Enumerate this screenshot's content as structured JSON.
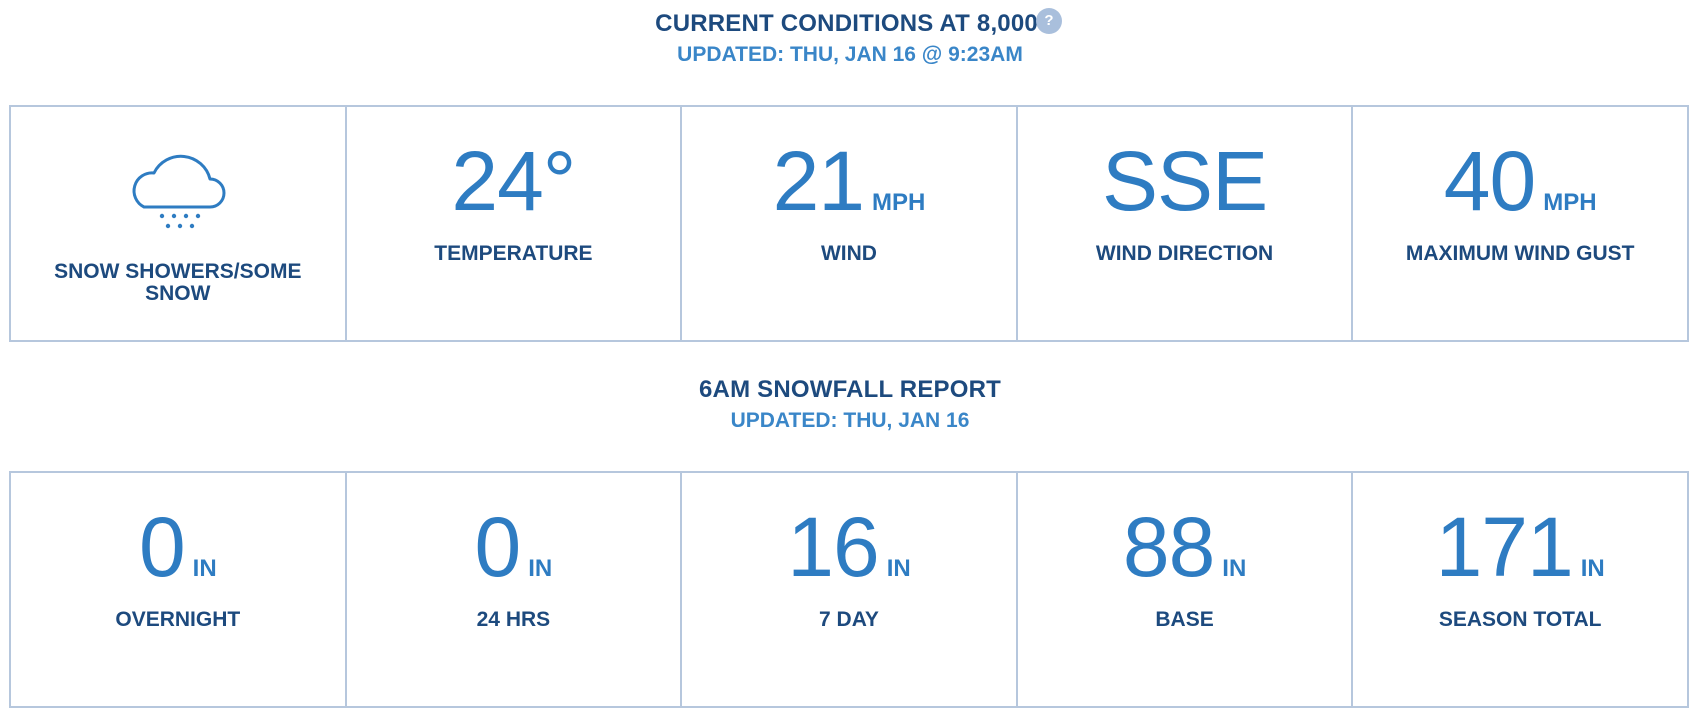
{
  "conditions": {
    "title": "CURRENT CONDITIONS AT 8,000’",
    "help_glyph": "?",
    "updated": "UPDATED: THU, JAN 16 @ 9:23AM",
    "weather": {
      "icon": "snow-cloud-icon",
      "label": "SNOW SHOWERS/SOME SNOW"
    },
    "temperature": {
      "value": "24°",
      "label": "TEMPERATURE"
    },
    "wind": {
      "value": "21",
      "unit": "MPH",
      "label": "WIND"
    },
    "wind_direction": {
      "value": "SSE",
      "label": "WIND DIRECTION"
    },
    "max_gust": {
      "value": "40",
      "unit": "MPH",
      "label": "MAXIMUM WIND GUST"
    }
  },
  "snowfall": {
    "title": "6AM SNOWFALL REPORT",
    "updated": "UPDATED: THU, JAN 16",
    "items": [
      {
        "value": "0",
        "unit": "IN",
        "label": "OVERNIGHT"
      },
      {
        "value": "0",
        "unit": "IN",
        "label": "24 HRS"
      },
      {
        "value": "16",
        "unit": "IN",
        "label": "7 DAY"
      },
      {
        "value": "88",
        "unit": "IN",
        "label": "BASE"
      },
      {
        "value": "171",
        "unit": "IN",
        "label": "SEASON TOTAL"
      }
    ]
  },
  "colors": {
    "title": "#1d4a7e",
    "accent": "#2e7cc2",
    "border": "#b6c7dd"
  }
}
